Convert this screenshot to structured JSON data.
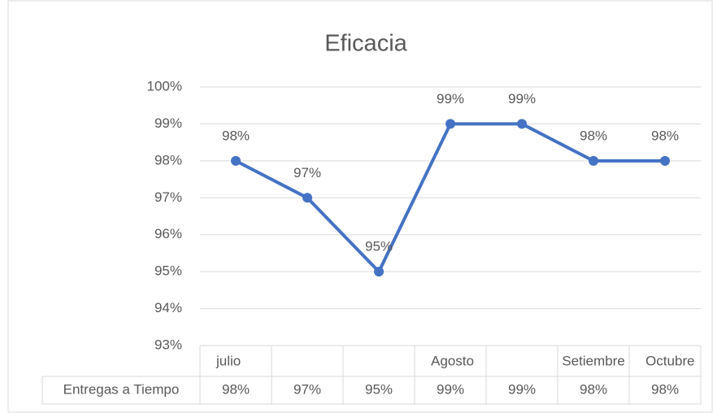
{
  "chart_data": {
    "type": "line",
    "title": "Eficacia",
    "categories": [
      "julio",
      null,
      null,
      "Agosto",
      null,
      "Setiembre",
      "Octubre"
    ],
    "series": [
      {
        "name": "Entregas a Tiempo",
        "color": "#4472c4",
        "values": [
          98,
          97,
          95,
          99,
          99,
          98,
          98
        ],
        "value_labels": [
          "98%",
          "97%",
          "95%",
          "99%",
          "99%",
          "98%",
          "98%"
        ]
      }
    ],
    "ylim": [
      93,
      100
    ],
    "yticks": [
      {
        "value": 93,
        "label": "93%"
      },
      {
        "value": 94,
        "label": "94%"
      },
      {
        "value": 95,
        "label": "95%"
      },
      {
        "value": 96,
        "label": "96%"
      },
      {
        "value": 97,
        "label": "97%"
      },
      {
        "value": 98,
        "label": "98%"
      },
      {
        "value": 99,
        "label": "99%"
      },
      {
        "value": 100,
        "label": "100%"
      }
    ],
    "grid": true,
    "data_table": true
  }
}
